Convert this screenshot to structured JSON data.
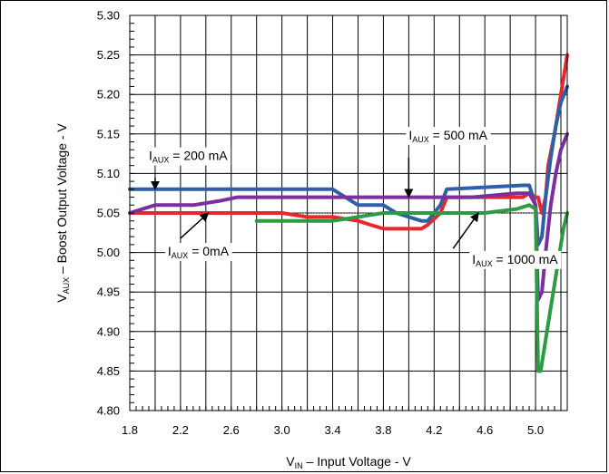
{
  "chart_data": {
    "type": "line",
    "title": "",
    "xlabel": {
      "main": "V",
      "sub": "IN",
      "rest": " – Input Voltage - V"
    },
    "ylabel": {
      "main": "V",
      "sub": "AUX",
      "rest": " – Boost Output Voltage - V"
    },
    "xlim": [
      1.8,
      5.25
    ],
    "ylim": [
      4.8,
      5.3
    ],
    "x_ticks": [
      "1.8",
      "2.2",
      "2.6",
      "3.0",
      "3.4",
      "3.8",
      "4.2",
      "4.6",
      "5.0"
    ],
    "x_tick_values": [
      1.8,
      2.2,
      2.6,
      3.0,
      3.4,
      3.8,
      4.2,
      4.6,
      5.0
    ],
    "y_ticks": [
      "4.80",
      "4.85",
      "4.90",
      "4.95",
      "5.00",
      "5.05",
      "5.10",
      "5.15",
      "5.20",
      "5.25",
      "5.30"
    ],
    "y_tick_values": [
      4.8,
      4.85,
      4.9,
      4.95,
      5.0,
      5.05,
      5.1,
      5.15,
      5.2,
      5.25,
      5.3
    ],
    "grid": true,
    "reference_line": 5.05,
    "series": [
      {
        "name": "IAUX = 0mA",
        "color": "#e8262b",
        "x": [
          1.8,
          3.0,
          3.2,
          3.4,
          3.6,
          3.7,
          3.8,
          4.1,
          4.15,
          4.25,
          4.3,
          4.9,
          4.95,
          5.0,
          5.02,
          5.05,
          5.08,
          5.1,
          5.15,
          5.2,
          5.25
        ],
        "y": [
          5.05,
          5.05,
          5.045,
          5.045,
          5.04,
          5.035,
          5.03,
          5.03,
          5.035,
          5.05,
          5.07,
          5.07,
          5.075,
          5.07,
          5.07,
          5.05,
          5.07,
          5.11,
          5.15,
          5.2,
          5.25
        ]
      },
      {
        "name": "IAUX = 200 mA",
        "color": "#2f5fa8",
        "x": [
          1.8,
          3.4,
          3.45,
          3.5,
          3.55,
          3.6,
          3.7,
          3.8,
          3.9,
          4.0,
          4.1,
          4.15,
          4.2,
          4.25,
          4.3,
          4.9,
          4.95,
          5.0,
          5.02,
          5.05,
          5.08,
          5.12,
          5.16,
          5.2,
          5.25
        ],
        "y": [
          5.08,
          5.08,
          5.075,
          5.07,
          5.065,
          5.06,
          5.06,
          5.06,
          5.05,
          5.045,
          5.04,
          5.04,
          5.05,
          5.06,
          5.08,
          5.085,
          5.085,
          5.06,
          5.01,
          5.02,
          5.07,
          5.12,
          5.16,
          5.19,
          5.21
        ]
      },
      {
        "name": "IAUX = 500 mA",
        "color": "#7b2f9e",
        "x": [
          1.8,
          2.0,
          2.3,
          2.5,
          2.65,
          3.0,
          4.5,
          4.85,
          4.95,
          5.0,
          5.02,
          5.05,
          5.08,
          5.12,
          5.16,
          5.2,
          5.25
        ],
        "y": [
          5.05,
          5.06,
          5.06,
          5.065,
          5.07,
          5.07,
          5.07,
          5.075,
          5.075,
          5.06,
          4.94,
          4.95,
          5.0,
          5.06,
          5.1,
          5.13,
          5.15
        ]
      },
      {
        "name": "IAUX = 1000 mA",
        "color": "#2e9a43",
        "x": [
          2.8,
          3.4,
          3.6,
          3.8,
          4.0,
          4.2,
          4.6,
          4.85,
          4.95,
          5.0,
          5.02,
          5.04,
          5.07,
          5.1,
          5.14,
          5.18,
          5.22,
          5.25
        ],
        "y": [
          5.04,
          5.04,
          5.045,
          5.05,
          5.05,
          5.05,
          5.05,
          5.055,
          5.06,
          5.055,
          4.85,
          4.85,
          4.88,
          4.91,
          4.95,
          4.99,
          5.03,
          5.05
        ]
      }
    ],
    "annotations": [
      {
        "main": "I",
        "sub": "AUX",
        "rest": " = 200 mA",
        "label_at": [
          1.95,
          5.117
        ],
        "arrow_from": [
          2.0,
          5.095
        ],
        "arrow_to": [
          2.0,
          5.08
        ]
      },
      {
        "main": "I",
        "sub": "AUX",
        "rest": " = 500 mA",
        "label_at": [
          4.0,
          5.143
        ],
        "arrow_from": [
          4.0,
          5.12
        ],
        "arrow_to": [
          4.0,
          5.07
        ]
      },
      {
        "main": "I",
        "sub": "AUX",
        "rest": " = 0mA",
        "label_at": [
          2.1,
          4.996
        ],
        "arrow_from": [
          2.2,
          5.018
        ],
        "arrow_to": [
          2.42,
          5.05
        ]
      },
      {
        "main": "I",
        "sub": "AUX",
        "rest": " = 1000 mA",
        "label_at": [
          4.5,
          4.986
        ],
        "arrow_from": [
          4.35,
          5.005
        ],
        "arrow_to": [
          4.55,
          5.05
        ]
      }
    ]
  }
}
